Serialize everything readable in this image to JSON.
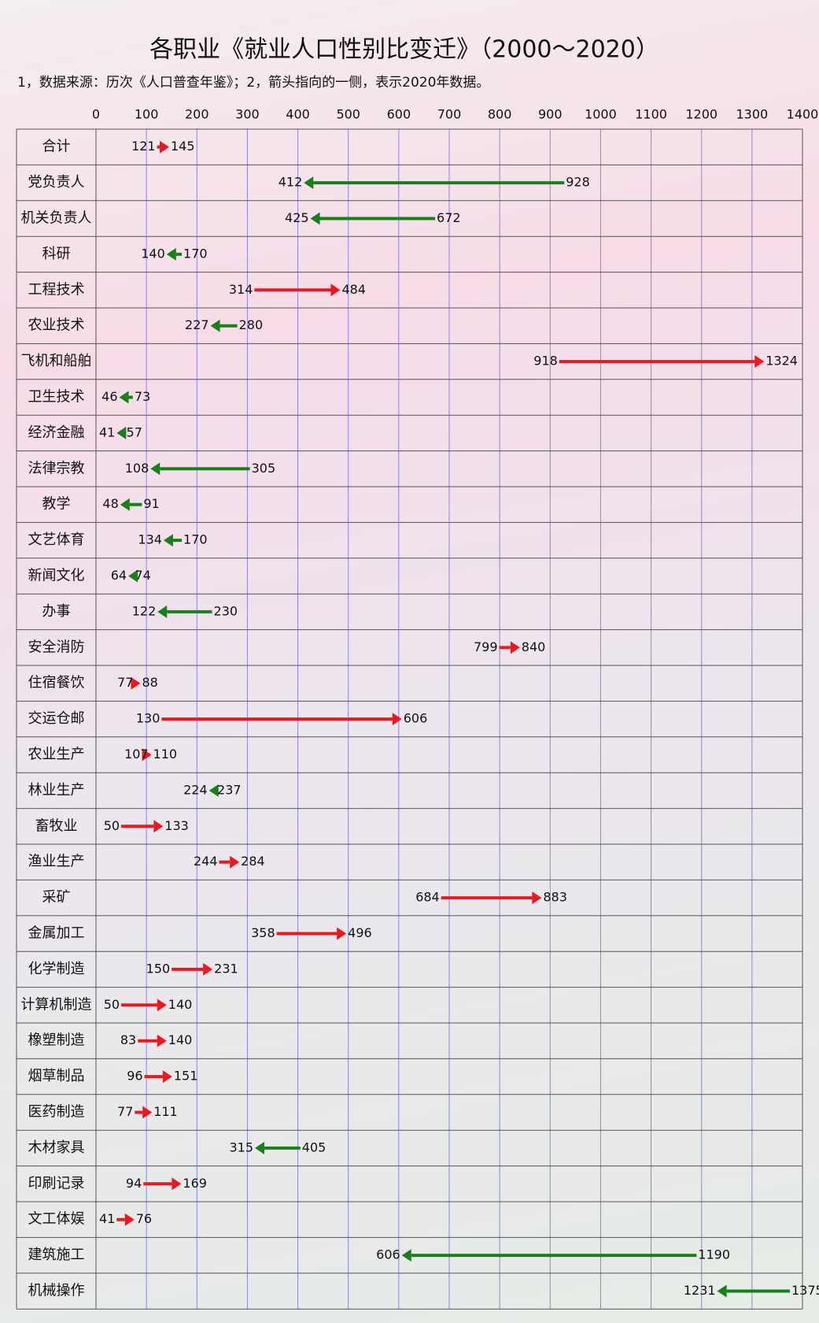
{
  "chart_data": {
    "type": "arrow",
    "title": "各职业《就业人口性别比变迁》（2000～2020）",
    "subtitle": "1，数据来源：历次《人口普查年鉴》；2，箭头指向的一侧，表示2020年数据。",
    "categories": [
      "合计",
      "党负责人",
      "机关负责人",
      "科研",
      "工程技术",
      "农业技术",
      "飞机和船舶",
      "卫生技术",
      "经济金融",
      "法律宗教",
      "教学",
      "文艺体育",
      "新闻文化",
      "办事",
      "安全消防",
      "住宿餐饮",
      "交运仓邮",
      "农业生产",
      "林业生产",
      "畜牧业",
      "渔业生产",
      "采矿",
      "金属加工",
      "化学制造",
      "计算机制造",
      "橡塑制造",
      "烟草制品",
      "医药制造",
      "木材家具",
      "印刷记录",
      "文工体娱",
      "建筑施工",
      "机械操作"
    ],
    "from": [
      121,
      928,
      672,
      170,
      314,
      280,
      918,
      73,
      57,
      305,
      91,
      170,
      74,
      230,
      799,
      77,
      130,
      107,
      237,
      50,
      244,
      684,
      358,
      150,
      50,
      83,
      96,
      77,
      405,
      94,
      41,
      1190,
      1375
    ],
    "to": [
      145,
      412,
      425,
      140,
      484,
      227,
      1324,
      46,
      41,
      108,
      48,
      134,
      64,
      122,
      840,
      88,
      606,
      110,
      224,
      133,
      284,
      883,
      496,
      231,
      140,
      140,
      151,
      111,
      315,
      169,
      76,
      606,
      1231
    ],
    "colors": {
      "increase": "#e8191f",
      "decrease": "#1a7f1a"
    },
    "xlim": [
      0,
      1400
    ],
    "xticks": [
      0,
      100,
      200,
      300,
      400,
      500,
      600,
      700,
      800,
      900,
      1000,
      1100,
      1200,
      1300,
      1400
    ],
    "grid": true
  }
}
